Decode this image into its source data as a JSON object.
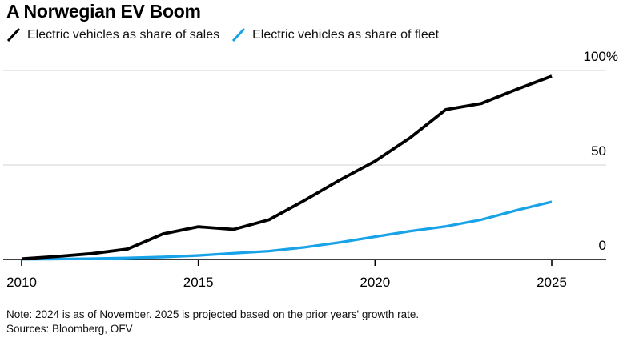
{
  "title": "A Norwegian EV Boom",
  "legend": {
    "items": [
      {
        "label": "Electric vehicles as share of sales",
        "color": "#000000"
      },
      {
        "label": "Electric vehicles as share of fleet",
        "color": "#18a2e8"
      }
    ]
  },
  "footer": {
    "note": "Note: 2024 is as of November. 2025 is projected based on the prior years' growth rate.",
    "sources": "Sources: Bloomberg, OFV"
  },
  "colors": {
    "sales_line": "#000000",
    "fleet_line": "#18a2e8",
    "gridline": "#dcdcdc",
    "axis": "#000000",
    "background": "#ffffff",
    "text": "#000000"
  },
  "chart_data": {
    "type": "line",
    "title": "A Norwegian EV Boom",
    "unit": "%",
    "x": [
      2010,
      2011,
      2012,
      2013,
      2014,
      2015,
      2016,
      2017,
      2018,
      2019,
      2020,
      2021,
      2022,
      2023,
      2024,
      2025
    ],
    "series": [
      {
        "name": "Electric vehicles as share of sales",
        "color": "#000000",
        "values": [
          0.3,
          1.6,
          3.1,
          5.5,
          13.5,
          17.3,
          15.9,
          21,
          31.2,
          42,
          52,
          64.5,
          79.3,
          82.5,
          90,
          97
        ]
      },
      {
        "name": "Electric vehicles as share of fleet",
        "color": "#18a2e8",
        "values": [
          0.1,
          0.2,
          0.4,
          0.8,
          1.3,
          2.1,
          3.3,
          4.4,
          6.4,
          9,
          12,
          15,
          17.5,
          21,
          26,
          30.5
        ]
      }
    ],
    "ylim": [
      0,
      100
    ],
    "xlim": [
      2010,
      2026.5
    ],
    "y_ticks": [
      {
        "value": 100,
        "label": "100%"
      },
      {
        "value": 50,
        "label": "50"
      },
      {
        "value": 0,
        "label": "0"
      }
    ],
    "x_ticks": [
      {
        "value": 2010,
        "label": "2010"
      },
      {
        "value": 2015,
        "label": "2015"
      },
      {
        "value": 2020,
        "label": "2020"
      },
      {
        "value": 2025,
        "label": "2025"
      }
    ],
    "grid": "horizontal-only",
    "legend_position": "top-left"
  }
}
